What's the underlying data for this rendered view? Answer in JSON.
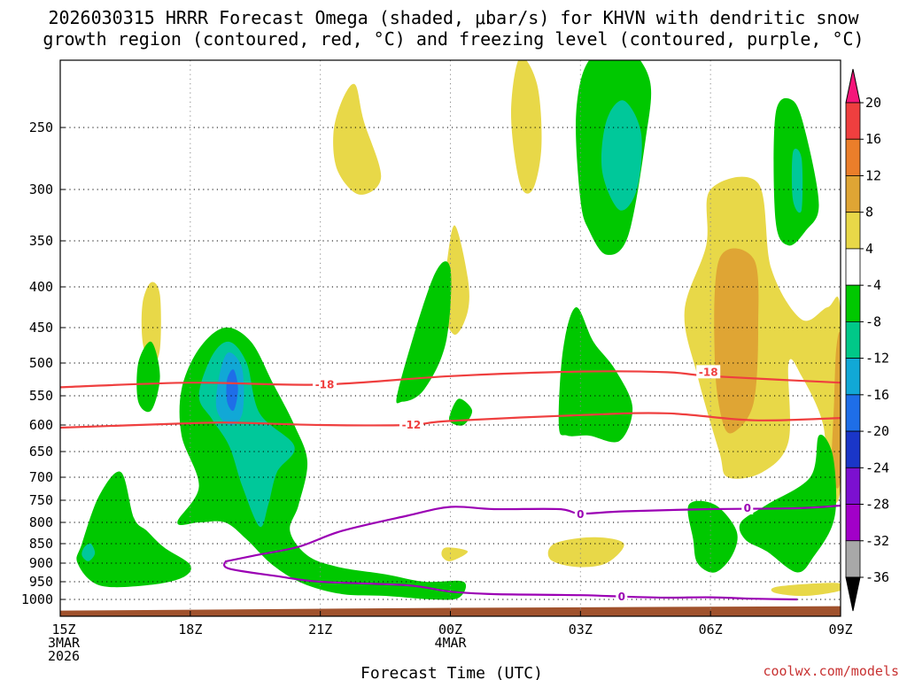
{
  "title": {
    "line1": "2026030315 HRRR Forecast Omega (shaded, μbar/s) for KHVN with dendritic snow",
    "line2": "growth region (contoured, red, °C) and freezing level (contoured, purple, °C)"
  },
  "credit": "coolwx.com/models",
  "chart_data": {
    "type": "heatmap",
    "title": "2026030315 HRRR Forecast Omega (shaded, μbar/s) for KHVN with dendritic snow growth region (contoured, red, °C) and freezing level (contoured, purple, °C)",
    "xlabel": "Forecast Time (UTC)",
    "ylabel": "",
    "x_range_hours": [
      0,
      18
    ],
    "x_ticks": [
      {
        "hour": 0,
        "lines": [
          "15Z",
          "3MAR",
          "2026"
        ]
      },
      {
        "hour": 3,
        "lines": [
          "18Z"
        ]
      },
      {
        "hour": 6,
        "lines": [
          "21Z"
        ]
      },
      {
        "hour": 9,
        "lines": [
          "00Z",
          "4MAR"
        ]
      },
      {
        "hour": 12,
        "lines": [
          "03Z"
        ]
      },
      {
        "hour": 15,
        "lines": [
          "06Z"
        ]
      },
      {
        "hour": 18,
        "lines": [
          "09Z"
        ]
      }
    ],
    "y_scale": "pressure (hPa), inverted, log-like",
    "y_range": [
      1030,
      200
    ],
    "y_ticks": [
      250,
      300,
      350,
      400,
      450,
      500,
      550,
      600,
      650,
      700,
      750,
      800,
      850,
      900,
      950,
      1000
    ],
    "colorbar": {
      "levels": [
        "20",
        "16",
        "12",
        "8",
        "4",
        "-4",
        "-8",
        "-12",
        "-16",
        "-20",
        "-24",
        "-28",
        "-32",
        "-36"
      ],
      "colors": [
        "#f5167a",
        "#ef3f3f",
        "#eb7e2a",
        "#dfa534",
        "#e8d848",
        "#ffffff",
        "#00c800",
        "#00c888",
        "#11a8d6",
        "#1e6ee8",
        "#1a36c8",
        "#7c10d0",
        "#a200c8",
        "#a8a8a8",
        "#000000"
      ]
    },
    "fill_colors": {
      "weak_rising": "#00c800",
      "moderate_rising": "#00c89a",
      "strong_rising": "#11a8d6",
      "very_strong_rising": "#1e6ee8",
      "weak_sinking": "#e8d848",
      "moderate_sinking": "#dfa534",
      "ground": "#a0522d"
    },
    "contours": [
      {
        "label": "-18",
        "color": "#ef3f3f",
        "points": [
          [
            0,
            537
          ],
          [
            3,
            530
          ],
          [
            6,
            533
          ],
          [
            9,
            520
          ],
          [
            12,
            513
          ],
          [
            14,
            514
          ],
          [
            15,
            520
          ],
          [
            18,
            530
          ]
        ]
      },
      {
        "label": "-12",
        "color": "#ef3f3f",
        "points": [
          [
            0,
            605
          ],
          [
            3,
            597
          ],
          [
            4,
            596
          ],
          [
            6,
            600
          ],
          [
            8,
            600
          ],
          [
            9,
            593
          ],
          [
            12,
            583
          ],
          [
            14,
            580
          ],
          [
            16,
            592
          ],
          [
            18,
            588
          ]
        ]
      },
      {
        "label": "0",
        "color": "#9b00b4",
        "points": [
          [
            3.8,
            896
          ],
          [
            4.5,
            880
          ],
          [
            5.5,
            858
          ],
          [
            6.5,
            820
          ],
          [
            8,
            785
          ],
          [
            9,
            765
          ],
          [
            10,
            770
          ],
          [
            11.5,
            770
          ],
          [
            12,
            780
          ],
          [
            13,
            775
          ],
          [
            15,
            770
          ],
          [
            17,
            768
          ],
          [
            18,
            762
          ]
        ]
      },
      {
        "label": "0",
        "color": "#9b00b4",
        "points": [
          [
            3.8,
            896
          ],
          [
            3.9,
            915
          ],
          [
            5,
            935
          ],
          [
            6,
            950
          ],
          [
            8,
            960
          ],
          [
            9,
            978
          ],
          [
            10,
            985
          ],
          [
            12,
            988
          ],
          [
            13,
            992
          ],
          [
            14,
            995
          ],
          [
            15,
            994
          ],
          [
            16,
            998
          ],
          [
            17,
            1000
          ]
        ]
      }
    ],
    "contour_labels": [
      {
        "text": "-18",
        "hour": 6.1,
        "p": 533,
        "color": "#ef3f3f"
      },
      {
        "text": "-18",
        "hour": 14.95,
        "p": 514,
        "color": "#ef3f3f"
      },
      {
        "text": "-12",
        "hour": 8.1,
        "p": 600,
        "color": "#ef3f3f"
      },
      {
        "text": "0",
        "hour": 12.0,
        "p": 782,
        "color": "#9b00b4"
      },
      {
        "text": "0",
        "hour": 15.85,
        "p": 768,
        "color": "#9b00b4"
      },
      {
        "text": "0",
        "hour": 12.95,
        "p": 993,
        "color": "#9b00b4"
      }
    ]
  }
}
